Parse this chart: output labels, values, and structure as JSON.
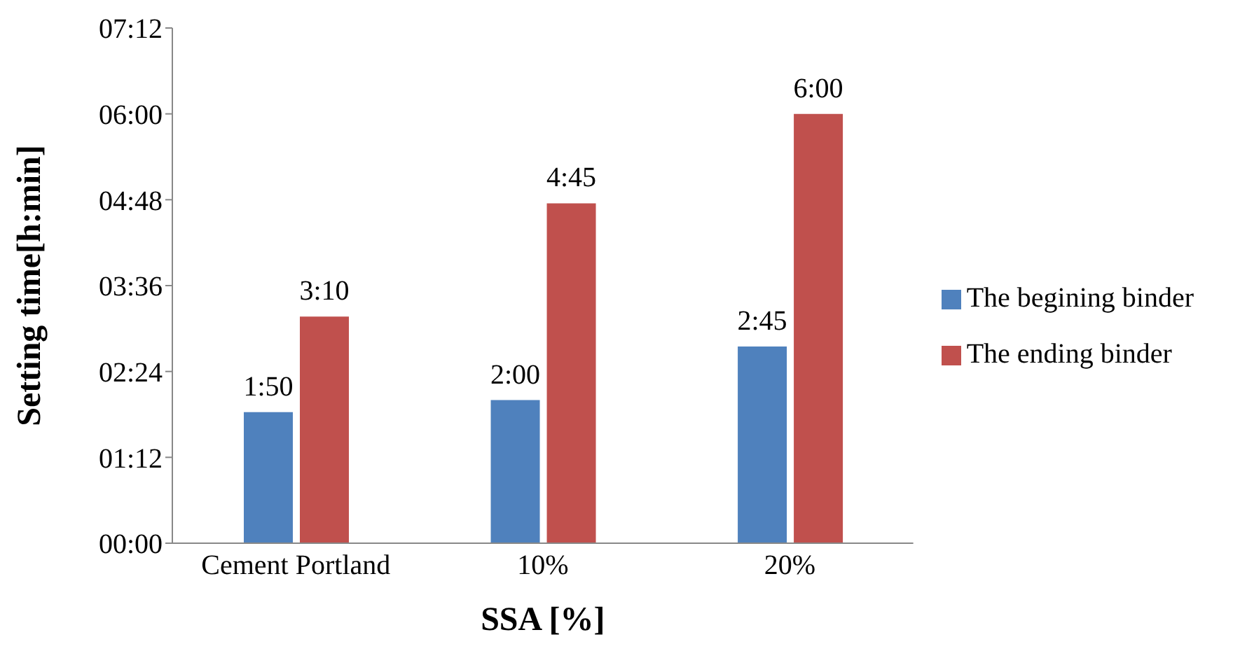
{
  "chart_data": {
    "type": "bar",
    "xlabel": "SSA [%]",
    "ylabel": "Setting time[h:min]",
    "categories": [
      "Cement Portland",
      "10%",
      "20%"
    ],
    "series": [
      {
        "name": "The begining binder",
        "color": "#4f81bd",
        "values": [
          1.833,
          2,
          2.75
        ],
        "value_labels": [
          "1:50",
          "2:00",
          "2:45"
        ]
      },
      {
        "name": "The ending binder",
        "color": "#c0504d",
        "values": [
          3.167,
          4.75,
          6
        ],
        "value_labels": [
          "3:10",
          "4:45",
          "6:00"
        ]
      }
    ],
    "ylim": [
      0,
      7.2
    ],
    "yticks": [
      {
        "value": 0,
        "label": "00:00"
      },
      {
        "value": 1.2,
        "label": "01:12"
      },
      {
        "value": 2.4,
        "label": "02:24"
      },
      {
        "value": 3.6,
        "label": "03:36"
      },
      {
        "value": 4.8,
        "label": "04:48"
      },
      {
        "value": 6,
        "label": "06:00"
      },
      {
        "value": 7.2,
        "label": "07:12"
      }
    ],
    "grid": false,
    "legend": "right"
  }
}
